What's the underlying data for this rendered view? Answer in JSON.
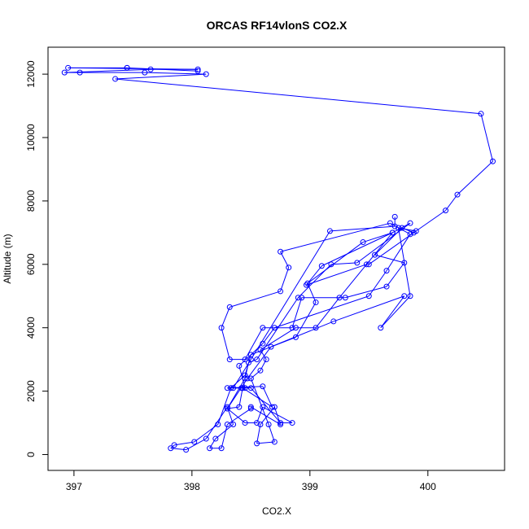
{
  "chart_data": {
    "type": "line",
    "title": "ORCAS RF14vlonS CO2.X",
    "xlabel": "CO2.X",
    "ylabel": "Altitude (m)",
    "xlim": [
      396.78,
      400.65
    ],
    "ylim": [
      -500,
      12850
    ],
    "xticks": [
      397,
      398,
      399,
      400
    ],
    "yticks": [
      0,
      2000,
      4000,
      6000,
      8000,
      10000,
      12000
    ],
    "grid": false,
    "legend": "none",
    "line_color": "#0000ff",
    "marker": "open-circle",
    "series": [
      {
        "points": [
          [
            398.05,
            12100
          ],
          [
            397.45,
            12200
          ],
          [
            397.45,
            12200
          ],
          [
            396.95,
            12200
          ],
          [
            398.05,
            12150
          ],
          [
            397.65,
            12150
          ],
          [
            396.92,
            12050
          ],
          [
            397.05,
            12050
          ],
          [
            397.6,
            12050
          ],
          [
            398.12,
            12000
          ],
          [
            397.35,
            11850
          ],
          [
            400.45,
            10750
          ],
          [
            400.55,
            9250
          ],
          [
            400.25,
            8200
          ],
          [
            400.15,
            7700
          ],
          [
            399.88,
            7000
          ],
          [
            399.78,
            7150
          ],
          [
            399.55,
            6300
          ],
          [
            399.8,
            6050
          ],
          [
            399.65,
            5300
          ],
          [
            399.3,
            4950
          ],
          [
            398.93,
            4950
          ],
          [
            398.85,
            4000
          ],
          [
            398.6,
            4000
          ],
          [
            398.45,
            3000
          ],
          [
            398.32,
            3000
          ],
          [
            398.25,
            4000
          ],
          [
            398.32,
            4650
          ],
          [
            398.75,
            5150
          ],
          [
            398.82,
            5900
          ],
          [
            398.75,
            6400
          ],
          [
            399.68,
            7300
          ],
          [
            399.85,
            6950
          ],
          [
            399.65,
            5800
          ],
          [
            399.5,
            5000
          ],
          [
            398.7,
            4000
          ],
          [
            398.6,
            3500
          ],
          [
            398.4,
            2800
          ],
          [
            398.45,
            2100
          ],
          [
            398.3,
            2100
          ],
          [
            398.6,
            2150
          ],
          [
            398.68,
            1500
          ],
          [
            398.43,
            2100
          ],
          [
            398.4,
            1500
          ],
          [
            398.3,
            1450
          ],
          [
            398.47,
            2400
          ],
          [
            398.67,
            3400
          ],
          [
            399.2,
            4200
          ],
          [
            399.8,
            5000
          ],
          [
            399.6,
            4000
          ],
          [
            399.85,
            5000
          ],
          [
            399.75,
            7150
          ],
          [
            399.9,
            7050
          ],
          [
            399.5,
            6000
          ],
          [
            399.48,
            6000
          ],
          [
            398.97,
            5350
          ],
          [
            399.1,
            5950
          ],
          [
            399.7,
            7000
          ],
          [
            399.45,
            6700
          ],
          [
            398.98,
            5400
          ],
          [
            399.05,
            4800
          ],
          [
            398.88,
            3700
          ],
          [
            398.5,
            3150
          ],
          [
            398.45,
            2500
          ],
          [
            398.33,
            2100
          ],
          [
            398.22,
            950
          ],
          [
            398.02,
            400
          ],
          [
            397.85,
            300
          ],
          [
            397.82,
            200
          ],
          [
            397.95,
            150
          ],
          [
            398.12,
            500
          ],
          [
            398.3,
            1500
          ],
          [
            398.35,
            950
          ],
          [
            398.2,
            500
          ],
          [
            398.15,
            200
          ],
          [
            398.25,
            200
          ],
          [
            398.3,
            950
          ],
          [
            398.5,
            1450
          ],
          [
            398.5,
            1500
          ],
          [
            398.75,
            950
          ],
          [
            398.7,
            1500
          ],
          [
            398.58,
            950
          ],
          [
            398.55,
            350
          ],
          [
            398.7,
            400
          ],
          [
            398.65,
            950
          ],
          [
            398.5,
            2400
          ],
          [
            398.58,
            2650
          ],
          [
            398.63,
            3000
          ],
          [
            398.58,
            3300
          ],
          [
            398.88,
            4000
          ],
          [
            399.05,
            4000
          ],
          [
            399.25,
            4950
          ],
          [
            399.7,
            7000
          ],
          [
            399.85,
            7300
          ],
          [
            399.4,
            6050
          ],
          [
            399.18,
            6000
          ],
          [
            398.9,
            4950
          ],
          [
            398.55,
            3000
          ],
          [
            398.48,
            2900
          ],
          [
            398.45,
            2400
          ],
          [
            398.3,
            1450
          ],
          [
            398.45,
            1000
          ],
          [
            398.55,
            1000
          ],
          [
            398.6,
            1500
          ],
          [
            398.85,
            1000
          ],
          [
            398.75,
            1000
          ],
          [
            398.5,
            2100
          ],
          [
            398.42,
            2100
          ],
          [
            398.35,
            2100
          ],
          [
            398.5,
            3000
          ],
          [
            399.17,
            7050
          ],
          [
            399.72,
            7200
          ],
          [
            399.72,
            7500
          ]
        ]
      }
    ]
  }
}
